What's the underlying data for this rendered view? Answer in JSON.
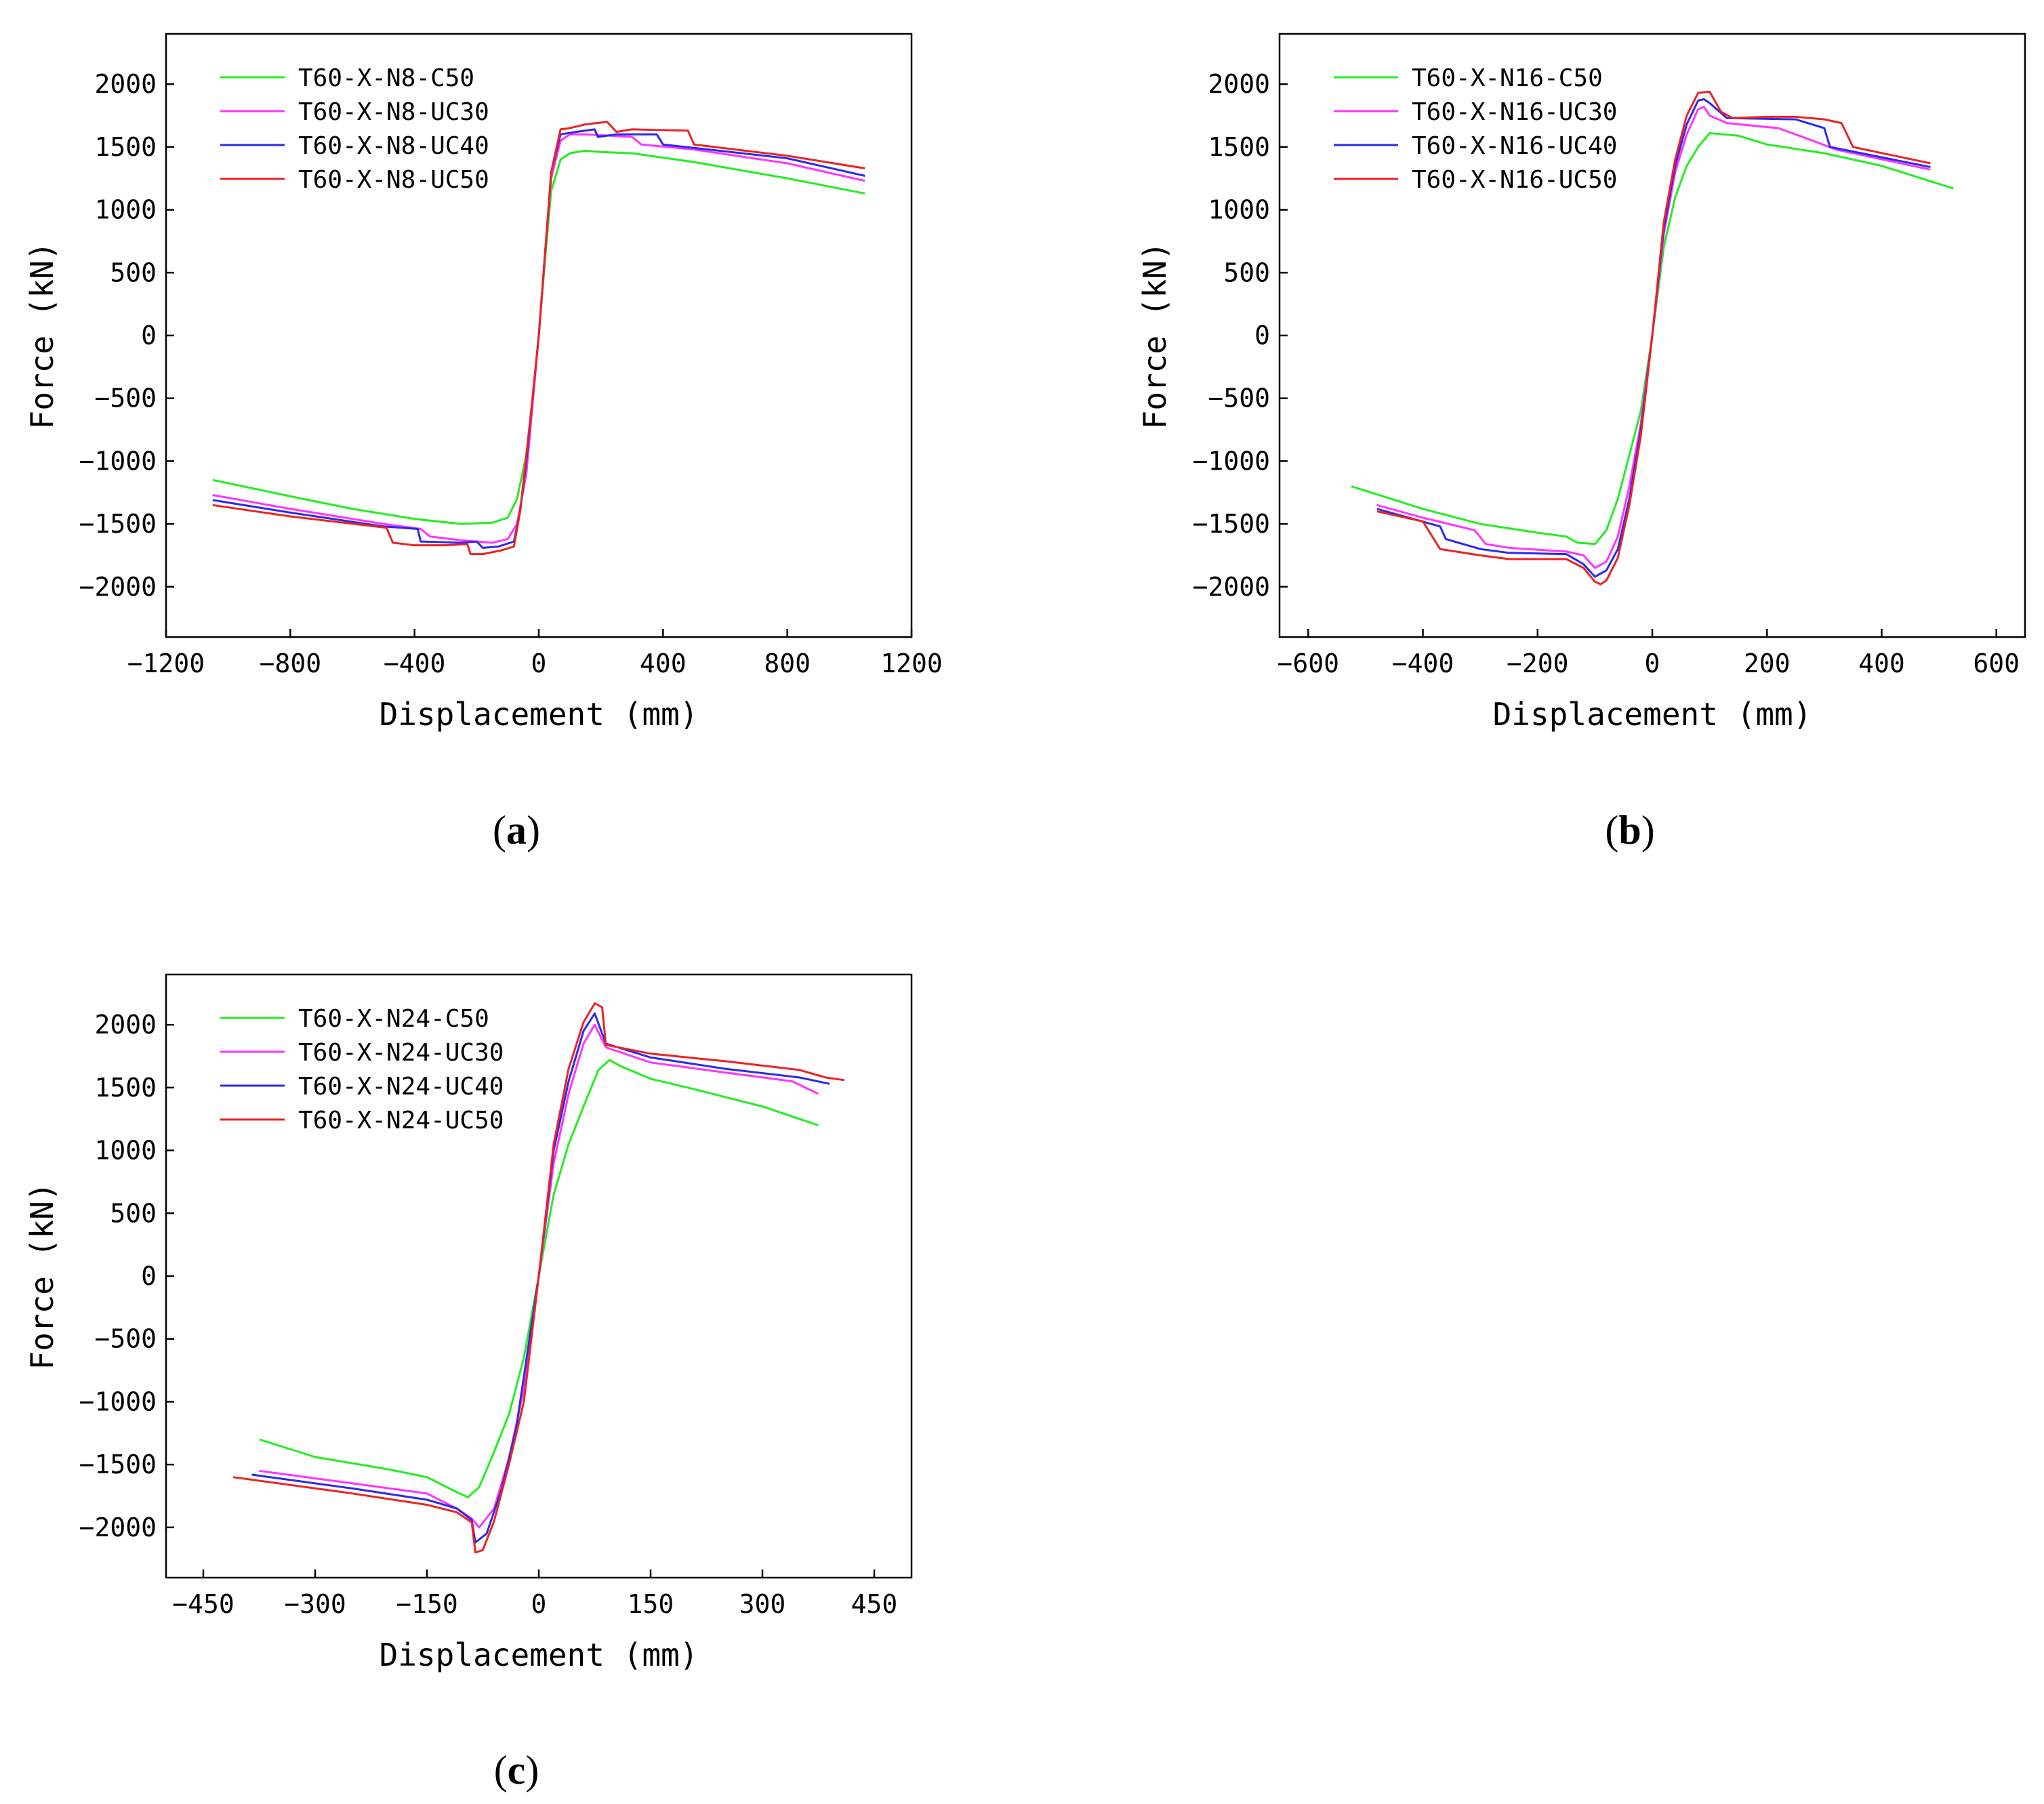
{
  "chart_data": [
    {
      "type": "line",
      "panel_label": "a",
      "xlabel": "Displacement (mm)",
      "ylabel": "Force (kN)",
      "xlim": [
        -1200,
        1200
      ],
      "ylim": [
        -2400,
        2400
      ],
      "xticks": [
        -1200,
        -800,
        -400,
        0,
        400,
        800,
        1200
      ],
      "xtick_labels": [
        "−1200",
        "−800",
        "−400",
        "0",
        "400",
        "800",
        "1200"
      ],
      "yticks": [
        -2000,
        -1500,
        -1000,
        -500,
        0,
        500,
        1000,
        1500,
        2000
      ],
      "ytick_labels": [
        "−2000",
        "−1500",
        "−1000",
        "−500",
        "0",
        "500",
        "1000",
        "1500",
        "2000"
      ],
      "legend_position": "top-left",
      "series": [
        {
          "name": "T60-X-N8-C50",
          "color": "#22ee22",
          "x": [
            -1050,
            -800,
            -600,
            -400,
            -250,
            -150,
            -100,
            -70,
            -40,
            -20,
            0,
            20,
            40,
            70,
            100,
            150,
            200,
            300,
            500,
            800,
            1050
          ],
          "y": [
            -1150,
            -1280,
            -1380,
            -1460,
            -1500,
            -1490,
            -1450,
            -1300,
            -950,
            -500,
            0,
            600,
            1150,
            1400,
            1450,
            1470,
            1460,
            1450,
            1380,
            1250,
            1130
          ]
        },
        {
          "name": "T60-X-N8-UC30",
          "color": "#ff33ff",
          "x": [
            -1050,
            -800,
            -500,
            -380,
            -350,
            -250,
            -150,
            -100,
            -70,
            -40,
            -20,
            0,
            20,
            40,
            70,
            100,
            150,
            300,
            330,
            500,
            800,
            1050
          ],
          "y": [
            -1270,
            -1380,
            -1500,
            -1540,
            -1600,
            -1630,
            -1650,
            -1620,
            -1500,
            -1100,
            -550,
            0,
            650,
            1250,
            1550,
            1600,
            1600,
            1580,
            1520,
            1480,
            1370,
            1230
          ]
        },
        {
          "name": "T60-X-N8-UC40",
          "color": "#2a2aee",
          "x": [
            -1050,
            -800,
            -500,
            -390,
            -380,
            -250,
            -200,
            -180,
            -130,
            -80,
            -60,
            -40,
            -20,
            0,
            20,
            40,
            70,
            120,
            180,
            190,
            250,
            380,
            400,
            800,
            1050
          ],
          "y": [
            -1310,
            -1410,
            -1520,
            -1540,
            -1640,
            -1650,
            -1640,
            -1690,
            -1680,
            -1640,
            -1400,
            -1000,
            -500,
            0,
            650,
            1300,
            1600,
            1620,
            1640,
            1580,
            1600,
            1600,
            1520,
            1410,
            1270
          ]
        },
        {
          "name": "T60-X-N8-UC50",
          "color": "#ee2222",
          "x": [
            -1050,
            -800,
            -490,
            -470,
            -400,
            -300,
            -230,
            -220,
            -180,
            -120,
            -80,
            -60,
            -40,
            -20,
            0,
            20,
            40,
            70,
            100,
            150,
            220,
            250,
            300,
            480,
            500,
            800,
            1050
          ],
          "y": [
            -1350,
            -1440,
            -1530,
            -1650,
            -1670,
            -1670,
            -1660,
            -1740,
            -1740,
            -1710,
            -1680,
            -1400,
            -950,
            -500,
            0,
            650,
            1300,
            1640,
            1650,
            1680,
            1700,
            1620,
            1640,
            1630,
            1520,
            1430,
            1330
          ]
        }
      ]
    },
    {
      "type": "line",
      "panel_label": "b",
      "xlabel": "Displacement (mm)",
      "ylabel": "Force (kN)",
      "xlim": [
        -650,
        650
      ],
      "ylim": [
        -2400,
        2400
      ],
      "xticks": [
        -600,
        -400,
        -200,
        0,
        200,
        400,
        600
      ],
      "xtick_labels": [
        "−600",
        "−400",
        "−200",
        "0",
        "200",
        "400",
        "600"
      ],
      "yticks": [
        -2000,
        -1500,
        -1000,
        -500,
        0,
        500,
        1000,
        1500,
        2000
      ],
      "ytick_labels": [
        "−2000",
        "−1500",
        "−1000",
        "−500",
        "0",
        "500",
        "1000",
        "1500",
        "2000"
      ],
      "legend_position": "top-left",
      "series": [
        {
          "name": "T60-X-N16-C50",
          "color": "#22ee22",
          "x": [
            -525,
            -400,
            -300,
            -200,
            -150,
            -130,
            -100,
            -80,
            -60,
            -40,
            -20,
            0,
            20,
            40,
            60,
            80,
            100,
            150,
            200,
            300,
            400,
            525
          ],
          "y": [
            -1200,
            -1380,
            -1500,
            -1570,
            -1600,
            -1650,
            -1660,
            -1550,
            -1300,
            -950,
            -600,
            0,
            700,
            1100,
            1350,
            1500,
            1610,
            1590,
            1520,
            1450,
            1350,
            1170
          ]
        },
        {
          "name": "T60-X-N16-UC30",
          "color": "#ff33ff",
          "x": [
            -480,
            -400,
            -310,
            -290,
            -250,
            -150,
            -120,
            -100,
            -80,
            -60,
            -40,
            -20,
            0,
            20,
            40,
            60,
            80,
            90,
            100,
            130,
            220,
            280,
            320,
            485
          ],
          "y": [
            -1350,
            -1450,
            -1550,
            -1660,
            -1690,
            -1720,
            -1750,
            -1850,
            -1800,
            -1600,
            -1200,
            -700,
            0,
            800,
            1300,
            1600,
            1800,
            1820,
            1750,
            1690,
            1650,
            1550,
            1480,
            1320
          ]
        },
        {
          "name": "T60-X-N16-UC40",
          "color": "#2a2aee",
          "x": [
            -480,
            -370,
            -360,
            -300,
            -250,
            -150,
            -120,
            -100,
            -80,
            -60,
            -40,
            -20,
            0,
            20,
            40,
            60,
            80,
            90,
            100,
            130,
            250,
            300,
            310,
            485
          ],
          "y": [
            -1380,
            -1520,
            -1620,
            -1700,
            -1730,
            -1740,
            -1820,
            -1920,
            -1870,
            -1700,
            -1300,
            -750,
            0,
            850,
            1350,
            1680,
            1870,
            1880,
            1850,
            1730,
            1720,
            1650,
            1500,
            1340
          ]
        },
        {
          "name": "T60-X-N16-UC50",
          "color": "#ee2222",
          "x": [
            -480,
            -400,
            -370,
            -300,
            -250,
            -150,
            -120,
            -100,
            -90,
            -80,
            -60,
            -40,
            -20,
            0,
            20,
            40,
            60,
            80,
            100,
            120,
            140,
            200,
            250,
            300,
            330,
            350,
            485
          ],
          "y": [
            -1400,
            -1480,
            -1700,
            -1750,
            -1780,
            -1780,
            -1850,
            -1960,
            -1980,
            -1950,
            -1770,
            -1350,
            -800,
            0,
            900,
            1400,
            1750,
            1930,
            1940,
            1780,
            1730,
            1740,
            1740,
            1720,
            1690,
            1500,
            1370
          ]
        }
      ]
    },
    {
      "type": "line",
      "panel_label": "c",
      "xlabel": "Displacement (mm)",
      "ylabel": "Force (kN)",
      "xlim": [
        -500,
        500
      ],
      "ylim": [
        -2400,
        2400
      ],
      "xticks": [
        -450,
        -300,
        -150,
        0,
        150,
        300,
        450
      ],
      "xtick_labels": [
        "−450",
        "−300",
        "−150",
        "0",
        "150",
        "300",
        "450"
      ],
      "yticks": [
        -2000,
        -1500,
        -1000,
        -500,
        0,
        500,
        1000,
        1500,
        2000
      ],
      "ytick_labels": [
        "−2000",
        "−1500",
        "−1000",
        "−500",
        "0",
        "500",
        "1000",
        "1500",
        "2000"
      ],
      "legend_position": "top-left",
      "series": [
        {
          "name": "T60-X-N24-C50",
          "color": "#22ee22",
          "x": [
            -375,
            -300,
            -200,
            -150,
            -110,
            -95,
            -80,
            -60,
            -40,
            -20,
            0,
            20,
            40,
            60,
            80,
            95,
            110,
            150,
            200,
            300,
            375
          ],
          "y": [
            -1300,
            -1440,
            -1540,
            -1600,
            -1720,
            -1760,
            -1680,
            -1400,
            -1100,
            -650,
            0,
            650,
            1050,
            1350,
            1640,
            1720,
            1670,
            1570,
            1500,
            1350,
            1200
          ]
        },
        {
          "name": "T60-X-N24-UC30",
          "color": "#ff33ff",
          "x": [
            -375,
            -250,
            -150,
            -110,
            -90,
            -80,
            -60,
            -40,
            -20,
            0,
            20,
            40,
            60,
            75,
            90,
            150,
            250,
            340,
            375
          ],
          "y": [
            -1550,
            -1650,
            -1730,
            -1850,
            -1930,
            -2000,
            -1850,
            -1450,
            -900,
            0,
            900,
            1450,
            1850,
            2000,
            1820,
            1700,
            1620,
            1550,
            1450
          ]
        },
        {
          "name": "T60-X-N24-UC40",
          "color": "#2a2aee",
          "x": [
            -385,
            -250,
            -150,
            -110,
            -90,
            -85,
            -70,
            -50,
            -30,
            0,
            20,
            40,
            60,
            75,
            90,
            150,
            250,
            350,
            390
          ],
          "y": [
            -1580,
            -1690,
            -1780,
            -1850,
            -1940,
            -2120,
            -2050,
            -1700,
            -1200,
            0,
            1000,
            1550,
            1950,
            2090,
            1850,
            1740,
            1650,
            1580,
            1530
          ]
        },
        {
          "name": "T60-X-N24-UC50",
          "color": "#ee2222",
          "x": [
            -410,
            -250,
            -150,
            -110,
            -90,
            -85,
            -75,
            -60,
            -40,
            -20,
            0,
            20,
            40,
            60,
            75,
            85,
            90,
            150,
            250,
            350,
            385,
            410
          ],
          "y": [
            -1600,
            -1730,
            -1820,
            -1880,
            -1960,
            -2200,
            -2180,
            -1950,
            -1500,
            -1000,
            0,
            1050,
            1650,
            2020,
            2170,
            2140,
            1840,
            1770,
            1710,
            1640,
            1580,
            1560
          ]
        }
      ]
    }
  ]
}
